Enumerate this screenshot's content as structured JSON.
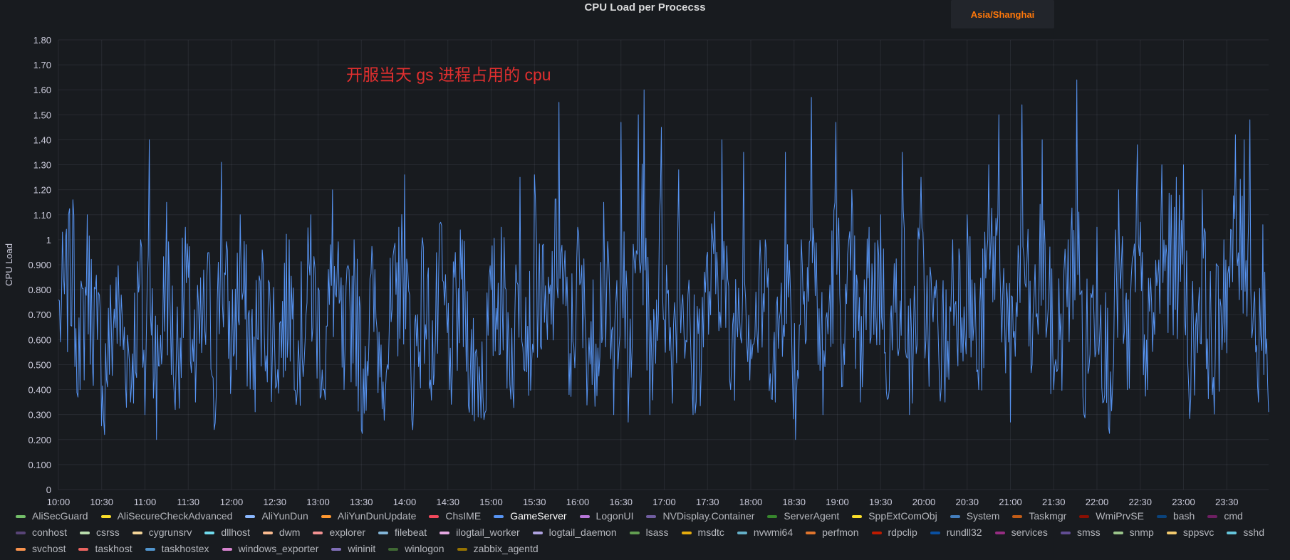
{
  "panel": {
    "title": "CPU Load per Procecss",
    "timezone_label": "Asia/Shanghai"
  },
  "chart_data": {
    "type": "line",
    "title": "CPU Load per Procecss",
    "ylabel": "CPU Load",
    "xlabel": "",
    "ylim": [
      0,
      1.8
    ],
    "xlim": [
      "10:00",
      "23:59"
    ],
    "yticks": [
      "0",
      "0.100",
      "0.200",
      "0.300",
      "0.400",
      "0.500",
      "0.600",
      "0.700",
      "0.800",
      "0.900",
      "1",
      "1.10",
      "1.20",
      "1.30",
      "1.40",
      "1.50",
      "1.60",
      "1.70",
      "1.80"
    ],
    "xticks": [
      "10:00",
      "10:30",
      "11:00",
      "11:30",
      "12:00",
      "12:30",
      "13:00",
      "13:30",
      "14:00",
      "14:30",
      "15:00",
      "15:30",
      "16:00",
      "16:30",
      "17:00",
      "17:30",
      "18:00",
      "18:30",
      "19:00",
      "19:30",
      "20:00",
      "20:30",
      "21:00",
      "21:30",
      "22:00",
      "22:30",
      "23:00",
      "23:30"
    ],
    "grid": true,
    "legend_position": "bottom",
    "annotation": "开服当天 gs 进程占用的 cpu",
    "annotation_color": "#e02f2f",
    "series": [
      {
        "name": "GameServer",
        "color": "#5794f2",
        "points": [
          [
            "10:00",
            0.76
          ],
          [
            "10:07",
            1.1
          ],
          [
            "10:10",
            1.16
          ],
          [
            "10:15",
            0.4
          ],
          [
            "10:20",
            1.1
          ],
          [
            "10:27",
            0.6
          ],
          [
            "10:32",
            0.22
          ],
          [
            "10:40",
            0.85
          ],
          [
            "10:50",
            0.35
          ],
          [
            "10:57",
            1.0
          ],
          [
            "11:00",
            0.3
          ],
          [
            "11:03",
            1.4
          ],
          [
            "11:08",
            0.2
          ],
          [
            "11:15",
            1.15
          ],
          [
            "11:21",
            0.32
          ],
          [
            "11:28",
            1.05
          ],
          [
            "11:35",
            0.35
          ],
          [
            "11:45",
            0.9
          ],
          [
            "11:48",
            0.24
          ],
          [
            "11:53",
            1.31
          ],
          [
            "12:00",
            0.5
          ],
          [
            "12:06",
            1.1
          ],
          [
            "12:15",
            0.4
          ],
          [
            "12:22",
            0.9
          ],
          [
            "12:32",
            0.48
          ],
          [
            "12:40",
            1.0
          ],
          [
            "12:47",
            0.5
          ],
          [
            "12:55",
            1.1
          ],
          [
            "13:05",
            0.36
          ],
          [
            "13:10",
            1.2
          ],
          [
            "13:18",
            0.4
          ],
          [
            "13:25",
            1.0
          ],
          [
            "13:30",
            0.24
          ],
          [
            "13:38",
            0.9
          ],
          [
            "13:43",
            0.45
          ],
          [
            "13:48",
            0.5
          ],
          [
            "13:56",
            1.05
          ],
          [
            "14:00",
            1.26
          ],
          [
            "14:05",
            0.28
          ],
          [
            "14:13",
            0.97
          ],
          [
            "14:20",
            0.42
          ],
          [
            "14:25",
            1.07
          ],
          [
            "14:31",
            0.4
          ],
          [
            "14:40",
            1.0
          ],
          [
            "14:47",
            0.3
          ],
          [
            "14:55",
            0.28
          ],
          [
            "15:00",
            0.8
          ],
          [
            "15:07",
            1.05
          ],
          [
            "15:15",
            0.4
          ],
          [
            "15:20",
            1.25
          ],
          [
            "15:28",
            0.5
          ],
          [
            "15:30",
            1.26
          ],
          [
            "15:39",
            0.6
          ],
          [
            "15:47",
            1.55
          ],
          [
            "15:54",
            0.38
          ],
          [
            "16:00",
            1.05
          ],
          [
            "16:10",
            0.42
          ],
          [
            "16:18",
            1.15
          ],
          [
            "16:25",
            0.3
          ],
          [
            "16:30",
            1.47
          ],
          [
            "16:35",
            0.27
          ],
          [
            "16:42",
            1.5
          ],
          [
            "16:46",
            1.6
          ],
          [
            "16:50",
            0.3
          ],
          [
            "16:58",
            1.45
          ],
          [
            "17:05",
            0.5
          ],
          [
            "17:10",
            1.28
          ],
          [
            "17:20",
            0.3
          ],
          [
            "17:30",
            0.95
          ],
          [
            "17:40",
            1.4
          ],
          [
            "17:46",
            0.4
          ],
          [
            "17:55",
            1.35
          ],
          [
            "18:00",
            0.6
          ],
          [
            "18:10",
            1.0
          ],
          [
            "18:17",
            0.35
          ],
          [
            "18:24",
            1.35
          ],
          [
            "18:31",
            0.2
          ],
          [
            "18:35",
            1.0
          ],
          [
            "18:42",
            1.57
          ],
          [
            "18:50",
            0.3
          ],
          [
            "18:59",
            1.47
          ],
          [
            "19:05",
            0.5
          ],
          [
            "19:10",
            1.2
          ],
          [
            "19:16",
            0.35
          ],
          [
            "19:22",
            1.05
          ],
          [
            "19:30",
            1.1
          ],
          [
            "19:36",
            0.4
          ],
          [
            "19:45",
            1.35
          ],
          [
            "19:50",
            0.3
          ],
          [
            "19:58",
            1.25
          ],
          [
            "20:00",
            0.9
          ],
          [
            "20:10",
            0.6
          ],
          [
            "20:16",
            0.45
          ],
          [
            "20:20",
            1.0
          ],
          [
            "20:30",
            1.1
          ],
          [
            "20:38",
            0.4
          ],
          [
            "20:45",
            1.3
          ],
          [
            "20:52",
            1.5
          ],
          [
            "21:00",
            0.27
          ],
          [
            "21:08",
            1.54
          ],
          [
            "21:15",
            0.5
          ],
          [
            "21:22",
            1.4
          ],
          [
            "21:30",
            0.4
          ],
          [
            "21:40",
            1.0
          ],
          [
            "21:46",
            1.64
          ],
          [
            "21:51",
            0.3
          ],
          [
            "22:00",
            1.05
          ],
          [
            "22:08",
            0.25
          ],
          [
            "22:15",
            1.2
          ],
          [
            "22:21",
            0.4
          ],
          [
            "22:28",
            1.38
          ],
          [
            "22:35",
            0.4
          ],
          [
            "22:45",
            1.3
          ],
          [
            "22:55",
            1.25
          ],
          [
            "23:00",
            1.3
          ],
          [
            "23:05",
            0.36
          ],
          [
            "23:13",
            1.2
          ],
          [
            "23:20",
            0.38
          ],
          [
            "23:28",
            1.0
          ],
          [
            "23:36",
            1.42
          ],
          [
            "23:42",
            1.4
          ],
          [
            "23:46",
            1.48
          ],
          [
            "23:52",
            0.35
          ],
          [
            "23:55",
            1.06
          ],
          [
            "23:59",
            0.31
          ]
        ]
      }
    ]
  },
  "legend": [
    {
      "label": "AliSecGuard",
      "color": "#73bf69"
    },
    {
      "label": "AliSecureCheckAdvanced",
      "color": "#fade2a"
    },
    {
      "label": "AliYunDun",
      "color": "#8ab8ff"
    },
    {
      "label": "AliYunDunUpdate",
      "color": "#ff9830"
    },
    {
      "label": "ChsIME",
      "color": "#f2495c"
    },
    {
      "label": "GameServer",
      "color": "#5794f2",
      "active": true
    },
    {
      "label": "LogonUI",
      "color": "#b877d9"
    },
    {
      "label": "NVDisplay.Container",
      "color": "#705da0"
    },
    {
      "label": "ServerAgent",
      "color": "#37872d"
    },
    {
      "label": "SppExtComObj",
      "color": "#fade2a"
    },
    {
      "label": "System",
      "color": "#447ebc"
    },
    {
      "label": "Taskmgr",
      "color": "#c15c17"
    },
    {
      "label": "WmiPrvSE",
      "color": "#890f02"
    },
    {
      "label": "bash",
      "color": "#0a437c"
    },
    {
      "label": "cmd",
      "color": "#6d1f62"
    },
    {
      "label": "conhost",
      "color": "#584477"
    },
    {
      "label": "csrss",
      "color": "#b7dbab"
    },
    {
      "label": "cygrunsrv",
      "color": "#f4d598"
    },
    {
      "label": "dllhost",
      "color": "#70dbed"
    },
    {
      "label": "dwm",
      "color": "#f9ba8f"
    },
    {
      "label": "explorer",
      "color": "#f29191"
    },
    {
      "label": "filebeat",
      "color": "#82b5d8"
    },
    {
      "label": "ilogtail_worker",
      "color": "#e5a8e2"
    },
    {
      "label": "logtail_daemon",
      "color": "#aea2e0"
    },
    {
      "label": "lsass",
      "color": "#629e51"
    },
    {
      "label": "msdtc",
      "color": "#e5ac0e"
    },
    {
      "label": "nvwmi64",
      "color": "#64b0c8"
    },
    {
      "label": "perfmon",
      "color": "#e0752d"
    },
    {
      "label": "rdpclip",
      "color": "#bf1b00"
    },
    {
      "label": "rundll32",
      "color": "#0a50a1"
    },
    {
      "label": "services",
      "color": "#962d82"
    },
    {
      "label": "smss",
      "color": "#614d93"
    },
    {
      "label": "snmp",
      "color": "#9ac48a"
    },
    {
      "label": "sppsvc",
      "color": "#f2c96d"
    },
    {
      "label": "sshd",
      "color": "#65c5db"
    },
    {
      "label": "svchost",
      "color": "#f9934e"
    },
    {
      "label": "taskhost",
      "color": "#ea6460"
    },
    {
      "label": "taskhostex",
      "color": "#5195ce"
    },
    {
      "label": "windows_exporter",
      "color": "#d683ce"
    },
    {
      "label": "wininit",
      "color": "#806eb7"
    },
    {
      "label": "winlogon",
      "color": "#3f6833"
    },
    {
      "label": "zabbix_agentd",
      "color": "#967302"
    }
  ]
}
